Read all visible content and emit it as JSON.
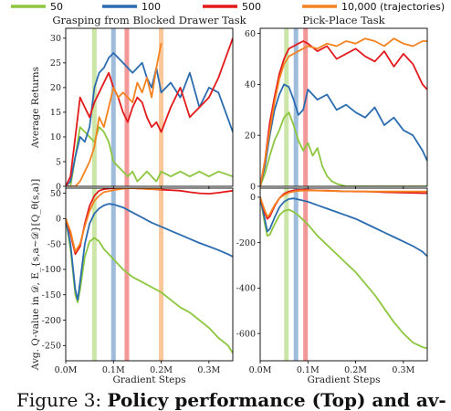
{
  "legend": [
    {
      "label": "50",
      "color": "#8dc63f"
    },
    {
      "label": "100",
      "color": "#2b6cb0"
    },
    {
      "label": "500",
      "color": "#e31a1c"
    },
    {
      "label": "10,000 (trajectories)",
      "color": "#f58220"
    }
  ],
  "caption": {
    "prefix": "Figure 3:",
    "bold": "Policy performance (Top) and av-"
  },
  "chart_data": [
    {
      "type": "line",
      "title": "Grasping from Blocked Drawer Task",
      "ylabel": "Average Returns",
      "xlabel": "",
      "xlim": [
        0,
        0.35
      ],
      "ylim": [
        0,
        32
      ],
      "yticks": [
        0,
        5,
        10,
        15,
        20,
        25,
        30
      ],
      "xtick_labels_shown": false,
      "vlines": [
        {
          "x": 0.06,
          "color": "#8dc63f"
        },
        {
          "x": 0.1,
          "color": "#2b6cb0"
        },
        {
          "x": 0.128,
          "color": "#e31a1c"
        },
        {
          "x": 0.2,
          "color": "#f58220"
        }
      ],
      "series": [
        {
          "name": "50",
          "color": "#8dc63f",
          "x": [
            0,
            0.01,
            0.02,
            0.03,
            0.04,
            0.05,
            0.06,
            0.07,
            0.08,
            0.09,
            0.1,
            0.11,
            0.12,
            0.13,
            0.14,
            0.15,
            0.16,
            0.17,
            0.18,
            0.19,
            0.2,
            0.22,
            0.24,
            0.26,
            0.28,
            0.3,
            0.32,
            0.35
          ],
          "y": [
            0,
            0,
            6,
            12,
            11,
            10,
            9,
            12,
            11,
            9,
            5,
            4,
            3,
            2,
            3,
            1,
            2,
            3,
            2,
            1,
            3,
            2,
            3,
            2,
            3,
            2,
            3,
            2
          ]
        },
        {
          "name": "100",
          "color": "#2b6cb0",
          "x": [
            0,
            0.01,
            0.02,
            0.03,
            0.04,
            0.05,
            0.06,
            0.07,
            0.08,
            0.09,
            0.1,
            0.11,
            0.12,
            0.13,
            0.14,
            0.15,
            0.16,
            0.17,
            0.18,
            0.19,
            0.2,
            0.22,
            0.24,
            0.26,
            0.28,
            0.3,
            0.32,
            0.35
          ],
          "y": [
            0,
            1,
            6,
            10,
            9,
            12,
            20,
            23,
            24,
            26,
            27,
            26,
            25,
            24,
            23,
            24,
            25,
            22,
            20,
            24,
            19,
            21,
            18,
            23,
            16,
            20,
            19,
            11
          ]
        },
        {
          "name": "500",
          "color": "#e31a1c",
          "x": [
            0,
            0.01,
            0.02,
            0.03,
            0.04,
            0.05,
            0.06,
            0.07,
            0.08,
            0.09,
            0.1,
            0.11,
            0.12,
            0.13,
            0.14,
            0.15,
            0.16,
            0.17,
            0.18,
            0.19,
            0.2,
            0.22,
            0.24,
            0.26,
            0.28,
            0.3,
            0.32,
            0.35
          ],
          "y": [
            0,
            2,
            10,
            18,
            16,
            14,
            17,
            19,
            21,
            23,
            20,
            18,
            15,
            13,
            16,
            18,
            17,
            14,
            12,
            13,
            11,
            16,
            20,
            14,
            16,
            18,
            22,
            30
          ]
        },
        {
          "name": "10,000 (trajectories)",
          "color": "#f58220",
          "x": [
            0,
            0.01,
            0.02,
            0.03,
            0.04,
            0.05,
            0.06,
            0.07,
            0.08,
            0.09,
            0.1,
            0.11,
            0.12,
            0.13,
            0.14,
            0.15,
            0.16,
            0.17,
            0.18,
            0.19,
            0.2
          ],
          "y": [
            0,
            0,
            0,
            1,
            3,
            5,
            8,
            14,
            12,
            16,
            20,
            18,
            19,
            18,
            17,
            21,
            19,
            22,
            18,
            24,
            29
          ]
        }
      ]
    },
    {
      "type": "line",
      "title": "Pick-Place Task",
      "ylabel": "",
      "xlabel": "",
      "xlim": [
        0,
        0.35
      ],
      "ylim": [
        0,
        62
      ],
      "yticks": [
        0,
        20,
        40,
        60
      ],
      "xtick_labels_shown": false,
      "vlines": [
        {
          "x": 0.055,
          "color": "#8dc63f"
        },
        {
          "x": 0.075,
          "color": "#2b6cb0"
        },
        {
          "x": 0.095,
          "color": "#e31a1c"
        }
      ],
      "series": [
        {
          "name": "50",
          "color": "#8dc63f",
          "x": [
            0,
            0.01,
            0.02,
            0.03,
            0.04,
            0.05,
            0.06,
            0.07,
            0.08,
            0.09,
            0.1,
            0.11,
            0.12,
            0.13,
            0.14,
            0.15,
            0.16,
            0.18,
            0.2,
            0.25,
            0.3,
            0.35
          ],
          "y": [
            0,
            5,
            12,
            18,
            22,
            27,
            29,
            24,
            18,
            14,
            17,
            12,
            15,
            8,
            4,
            2,
            1,
            0,
            0,
            0,
            0,
            0
          ]
        },
        {
          "name": "100",
          "color": "#2b6cb0",
          "x": [
            0,
            0.01,
            0.02,
            0.03,
            0.04,
            0.05,
            0.06,
            0.07,
            0.08,
            0.09,
            0.1,
            0.12,
            0.14,
            0.16,
            0.18,
            0.2,
            0.22,
            0.24,
            0.26,
            0.28,
            0.3,
            0.32,
            0.34,
            0.35
          ],
          "y": [
            0,
            8,
            20,
            30,
            36,
            40,
            39,
            34,
            28,
            30,
            38,
            34,
            36,
            30,
            32,
            29,
            27,
            31,
            24,
            27,
            22,
            20,
            14,
            10
          ]
        },
        {
          "name": "500",
          "color": "#e31a1c",
          "x": [
            0,
            0.01,
            0.02,
            0.03,
            0.04,
            0.05,
            0.06,
            0.07,
            0.08,
            0.09,
            0.1,
            0.12,
            0.14,
            0.16,
            0.18,
            0.2,
            0.22,
            0.24,
            0.26,
            0.28,
            0.3,
            0.32,
            0.34,
            0.35
          ],
          "y": [
            0,
            10,
            25,
            35,
            44,
            50,
            54,
            55,
            56,
            57,
            56,
            53,
            55,
            50,
            52,
            54,
            51,
            49,
            53,
            47,
            52,
            48,
            40,
            38
          ]
        },
        {
          "name": "10,000 (trajectories)",
          "color": "#f58220",
          "x": [
            0,
            0.01,
            0.02,
            0.03,
            0.04,
            0.05,
            0.06,
            0.08,
            0.1,
            0.12,
            0.14,
            0.16,
            0.18,
            0.2,
            0.22,
            0.24,
            0.26,
            0.28,
            0.3,
            0.32,
            0.34,
            0.35
          ],
          "y": [
            0,
            10,
            22,
            33,
            42,
            48,
            51,
            53,
            55,
            54,
            56,
            55,
            57,
            56,
            58,
            57,
            55,
            58,
            56,
            55,
            57,
            57
          ]
        }
      ]
    },
    {
      "type": "line",
      "title": "",
      "ylabel": "Avg. Q-value in 𝒟, E_{s,a∼𝒟}[Q_θ(s,a)]",
      "xlabel": "Gradient Steps",
      "xlim": [
        0,
        0.35
      ],
      "ylim": [
        -280,
        60
      ],
      "yticks": [
        -250,
        -200,
        -150,
        -100,
        -50,
        0,
        50
      ],
      "xticks": [
        0,
        0.1,
        0.2,
        0.3
      ],
      "xtick_labels": [
        "0.0M",
        "0.1M",
        "0.2M",
        "0.3M"
      ],
      "vlines": [
        {
          "x": 0.06,
          "color": "#8dc63f"
        },
        {
          "x": 0.1,
          "color": "#2b6cb0"
        },
        {
          "x": 0.128,
          "color": "#e31a1c"
        },
        {
          "x": 0.2,
          "color": "#f58220"
        }
      ],
      "series": [
        {
          "name": "50",
          "color": "#8dc63f",
          "x": [
            0,
            0.01,
            0.02,
            0.025,
            0.03,
            0.04,
            0.05,
            0.06,
            0.07,
            0.08,
            0.1,
            0.12,
            0.14,
            0.16,
            0.18,
            0.2,
            0.22,
            0.24,
            0.26,
            0.28,
            0.3,
            0.32,
            0.34,
            0.35
          ],
          "y": [
            0,
            -60,
            -150,
            -165,
            -140,
            -75,
            -45,
            -38,
            -45,
            -60,
            -80,
            -100,
            -115,
            -125,
            -135,
            -145,
            -160,
            -175,
            -185,
            -200,
            -215,
            -235,
            -250,
            -265
          ]
        },
        {
          "name": "100",
          "color": "#2b6cb0",
          "x": [
            0,
            0.01,
            0.02,
            0.025,
            0.03,
            0.04,
            0.05,
            0.06,
            0.07,
            0.08,
            0.09,
            0.1,
            0.12,
            0.14,
            0.16,
            0.18,
            0.2,
            0.22,
            0.24,
            0.26,
            0.28,
            0.3,
            0.32,
            0.34,
            0.35
          ],
          "y": [
            0,
            -50,
            -140,
            -160,
            -125,
            -50,
            -10,
            10,
            20,
            26,
            29,
            28,
            22,
            12,
            2,
            -8,
            -16,
            -24,
            -32,
            -40,
            -48,
            -55,
            -62,
            -70,
            -75
          ]
        },
        {
          "name": "500",
          "color": "#e31a1c",
          "x": [
            0,
            0.01,
            0.02,
            0.03,
            0.04,
            0.05,
            0.06,
            0.07,
            0.08,
            0.1,
            0.12,
            0.14,
            0.16,
            0.18,
            0.2,
            0.22,
            0.24,
            0.26,
            0.28,
            0.3,
            0.32,
            0.35
          ],
          "y": [
            0,
            -30,
            -70,
            -55,
            -10,
            25,
            45,
            55,
            58,
            60,
            61,
            60,
            59,
            58,
            57,
            56,
            55,
            52,
            50,
            49,
            51,
            55
          ]
        },
        {
          "name": "10,000 (trajectories)",
          "color": "#f58220",
          "x": [
            0,
            0.01,
            0.02,
            0.03,
            0.04,
            0.05,
            0.06,
            0.07,
            0.08,
            0.1,
            0.12,
            0.14,
            0.16,
            0.18,
            0.2
          ],
          "y": [
            0,
            -25,
            -65,
            -50,
            -15,
            15,
            35,
            45,
            52,
            56,
            59,
            60,
            59,
            58,
            58
          ]
        }
      ]
    },
    {
      "type": "line",
      "title": "",
      "ylabel": "",
      "xlabel": "Gradient Steps",
      "xlim": [
        0,
        0.35
      ],
      "ylim": [
        -720,
        40
      ],
      "yticks": [
        -600,
        -400,
        -200,
        0
      ],
      "xticks": [
        0,
        0.1,
        0.2,
        0.3
      ],
      "xtick_labels": [
        "0.0M",
        "0.1M",
        "0.2M",
        "0.3M"
      ],
      "vlines": [
        {
          "x": 0.055,
          "color": "#8dc63f"
        },
        {
          "x": 0.075,
          "color": "#2b6cb0"
        },
        {
          "x": 0.095,
          "color": "#e31a1c"
        }
      ],
      "series": [
        {
          "name": "50",
          "color": "#8dc63f",
          "x": [
            0,
            0.01,
            0.015,
            0.02,
            0.03,
            0.04,
            0.05,
            0.06,
            0.07,
            0.08,
            0.1,
            0.12,
            0.14,
            0.16,
            0.18,
            0.2,
            0.22,
            0.24,
            0.26,
            0.28,
            0.3,
            0.32,
            0.34,
            0.35
          ],
          "y": [
            0,
            -120,
            -170,
            -165,
            -120,
            -80,
            -60,
            -55,
            -65,
            -80,
            -120,
            -170,
            -210,
            -250,
            -290,
            -330,
            -380,
            -430,
            -490,
            -550,
            -600,
            -640,
            -660,
            -665
          ]
        },
        {
          "name": "100",
          "color": "#2b6cb0",
          "x": [
            0,
            0.01,
            0.015,
            0.02,
            0.03,
            0.04,
            0.05,
            0.06,
            0.07,
            0.08,
            0.1,
            0.12,
            0.14,
            0.16,
            0.18,
            0.2,
            0.22,
            0.24,
            0.26,
            0.28,
            0.3,
            0.32,
            0.34,
            0.35
          ],
          "y": [
            0,
            -100,
            -150,
            -140,
            -90,
            -45,
            -20,
            -8,
            -5,
            -10,
            -20,
            -35,
            -50,
            -65,
            -80,
            -95,
            -115,
            -135,
            -155,
            -175,
            -195,
            -215,
            -240,
            -260
          ]
        },
        {
          "name": "500",
          "color": "#e31a1c",
          "x": [
            0,
            0.01,
            0.015,
            0.02,
            0.03,
            0.04,
            0.05,
            0.06,
            0.07,
            0.08,
            0.1,
            0.12,
            0.14,
            0.16,
            0.18,
            0.2,
            0.22,
            0.24,
            0.26,
            0.28,
            0.3,
            0.32,
            0.34,
            0.35
          ],
          "y": [
            0,
            -70,
            -95,
            -85,
            -40,
            -5,
            15,
            25,
            30,
            32,
            32,
            30,
            29,
            27,
            26,
            25,
            25,
            24,
            22,
            21,
            20,
            19,
            18,
            18
          ]
        },
        {
          "name": "10,000 (trajectories)",
          "color": "#f58220",
          "x": [
            0,
            0.01,
            0.015,
            0.02,
            0.03,
            0.04,
            0.05,
            0.06,
            0.07,
            0.08,
            0.1,
            0.12,
            0.14,
            0.16,
            0.18,
            0.2,
            0.22,
            0.24,
            0.26,
            0.28,
            0.3,
            0.32,
            0.34,
            0.35
          ],
          "y": [
            0,
            -60,
            -85,
            -75,
            -35,
            -5,
            10,
            20,
            25,
            28,
            30,
            29,
            28,
            27,
            26,
            26,
            25,
            25,
            25,
            25,
            25,
            25,
            25,
            25
          ]
        }
      ]
    }
  ]
}
